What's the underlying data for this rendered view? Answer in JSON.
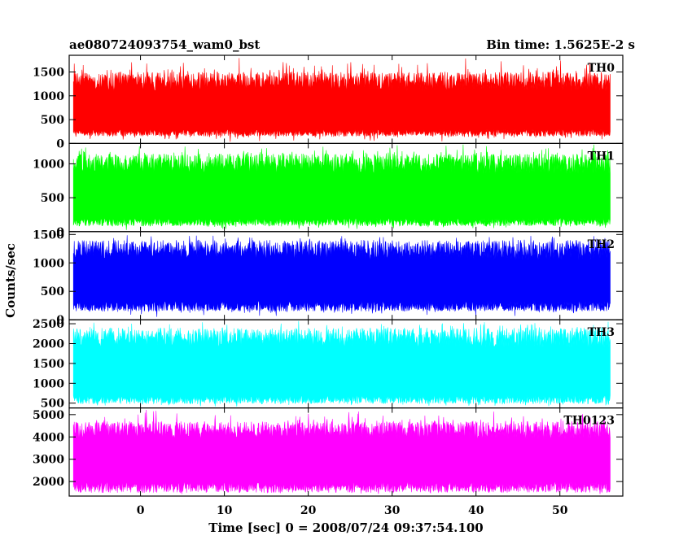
{
  "chart_data": {
    "type": "line",
    "title": "ae080724093754_wam0_bst",
    "subtitle": "Bin time: 1.5625E-2 s",
    "xlabel": "Time [sec] 0 = 2008/07/24 09:37:54.100",
    "ylabel": "Counts/sec",
    "xlim": [
      -8.5,
      57.5
    ],
    "x_range_data": [
      -8.0,
      56.0
    ],
    "bin_time": 0.015625,
    "x_ticks": [
      0,
      10,
      20,
      30,
      40,
      50
    ],
    "grid": false,
    "panels": [
      {
        "name": "TH0",
        "color": "#ff0000",
        "ylim": [
          0,
          1850
        ],
        "y_ticks": [
          0,
          500,
          1000,
          1500
        ],
        "low_band": [
          150,
          300
        ],
        "high_band": [
          1100,
          1500
        ],
        "peak": 1850
      },
      {
        "name": "TH1",
        "color": "#00ff00",
        "ylim": [
          0,
          1300
        ],
        "y_ticks": [
          0,
          500,
          1000
        ],
        "low_band": [
          80,
          200
        ],
        "high_band": [
          850,
          1150
        ],
        "peak": 1300
      },
      {
        "name": "TH2",
        "color": "#0000ff",
        "ylim": [
          0,
          1550
        ],
        "y_ticks": [
          0,
          500,
          1000,
          1500
        ],
        "low_band": [
          150,
          330
        ],
        "high_band": [
          1050,
          1400
        ],
        "peak": 1550
      },
      {
        "name": "TH3",
        "color": "#00ffff",
        "ylim": [
          380,
          2600
        ],
        "y_ticks": [
          500,
          1000,
          1500,
          2000,
          2500
        ],
        "low_band": [
          480,
          700
        ],
        "high_band": [
          1900,
          2400
        ],
        "peak": 2600
      },
      {
        "name": "TH0123",
        "color": "#ff00ff",
        "ylim": [
          1350,
          5300
        ],
        "y_ticks": [
          2000,
          3000,
          4000,
          5000
        ],
        "low_band": [
          1500,
          2000
        ],
        "high_band": [
          3900,
          4700
        ],
        "peak": 5300
      }
    ]
  }
}
